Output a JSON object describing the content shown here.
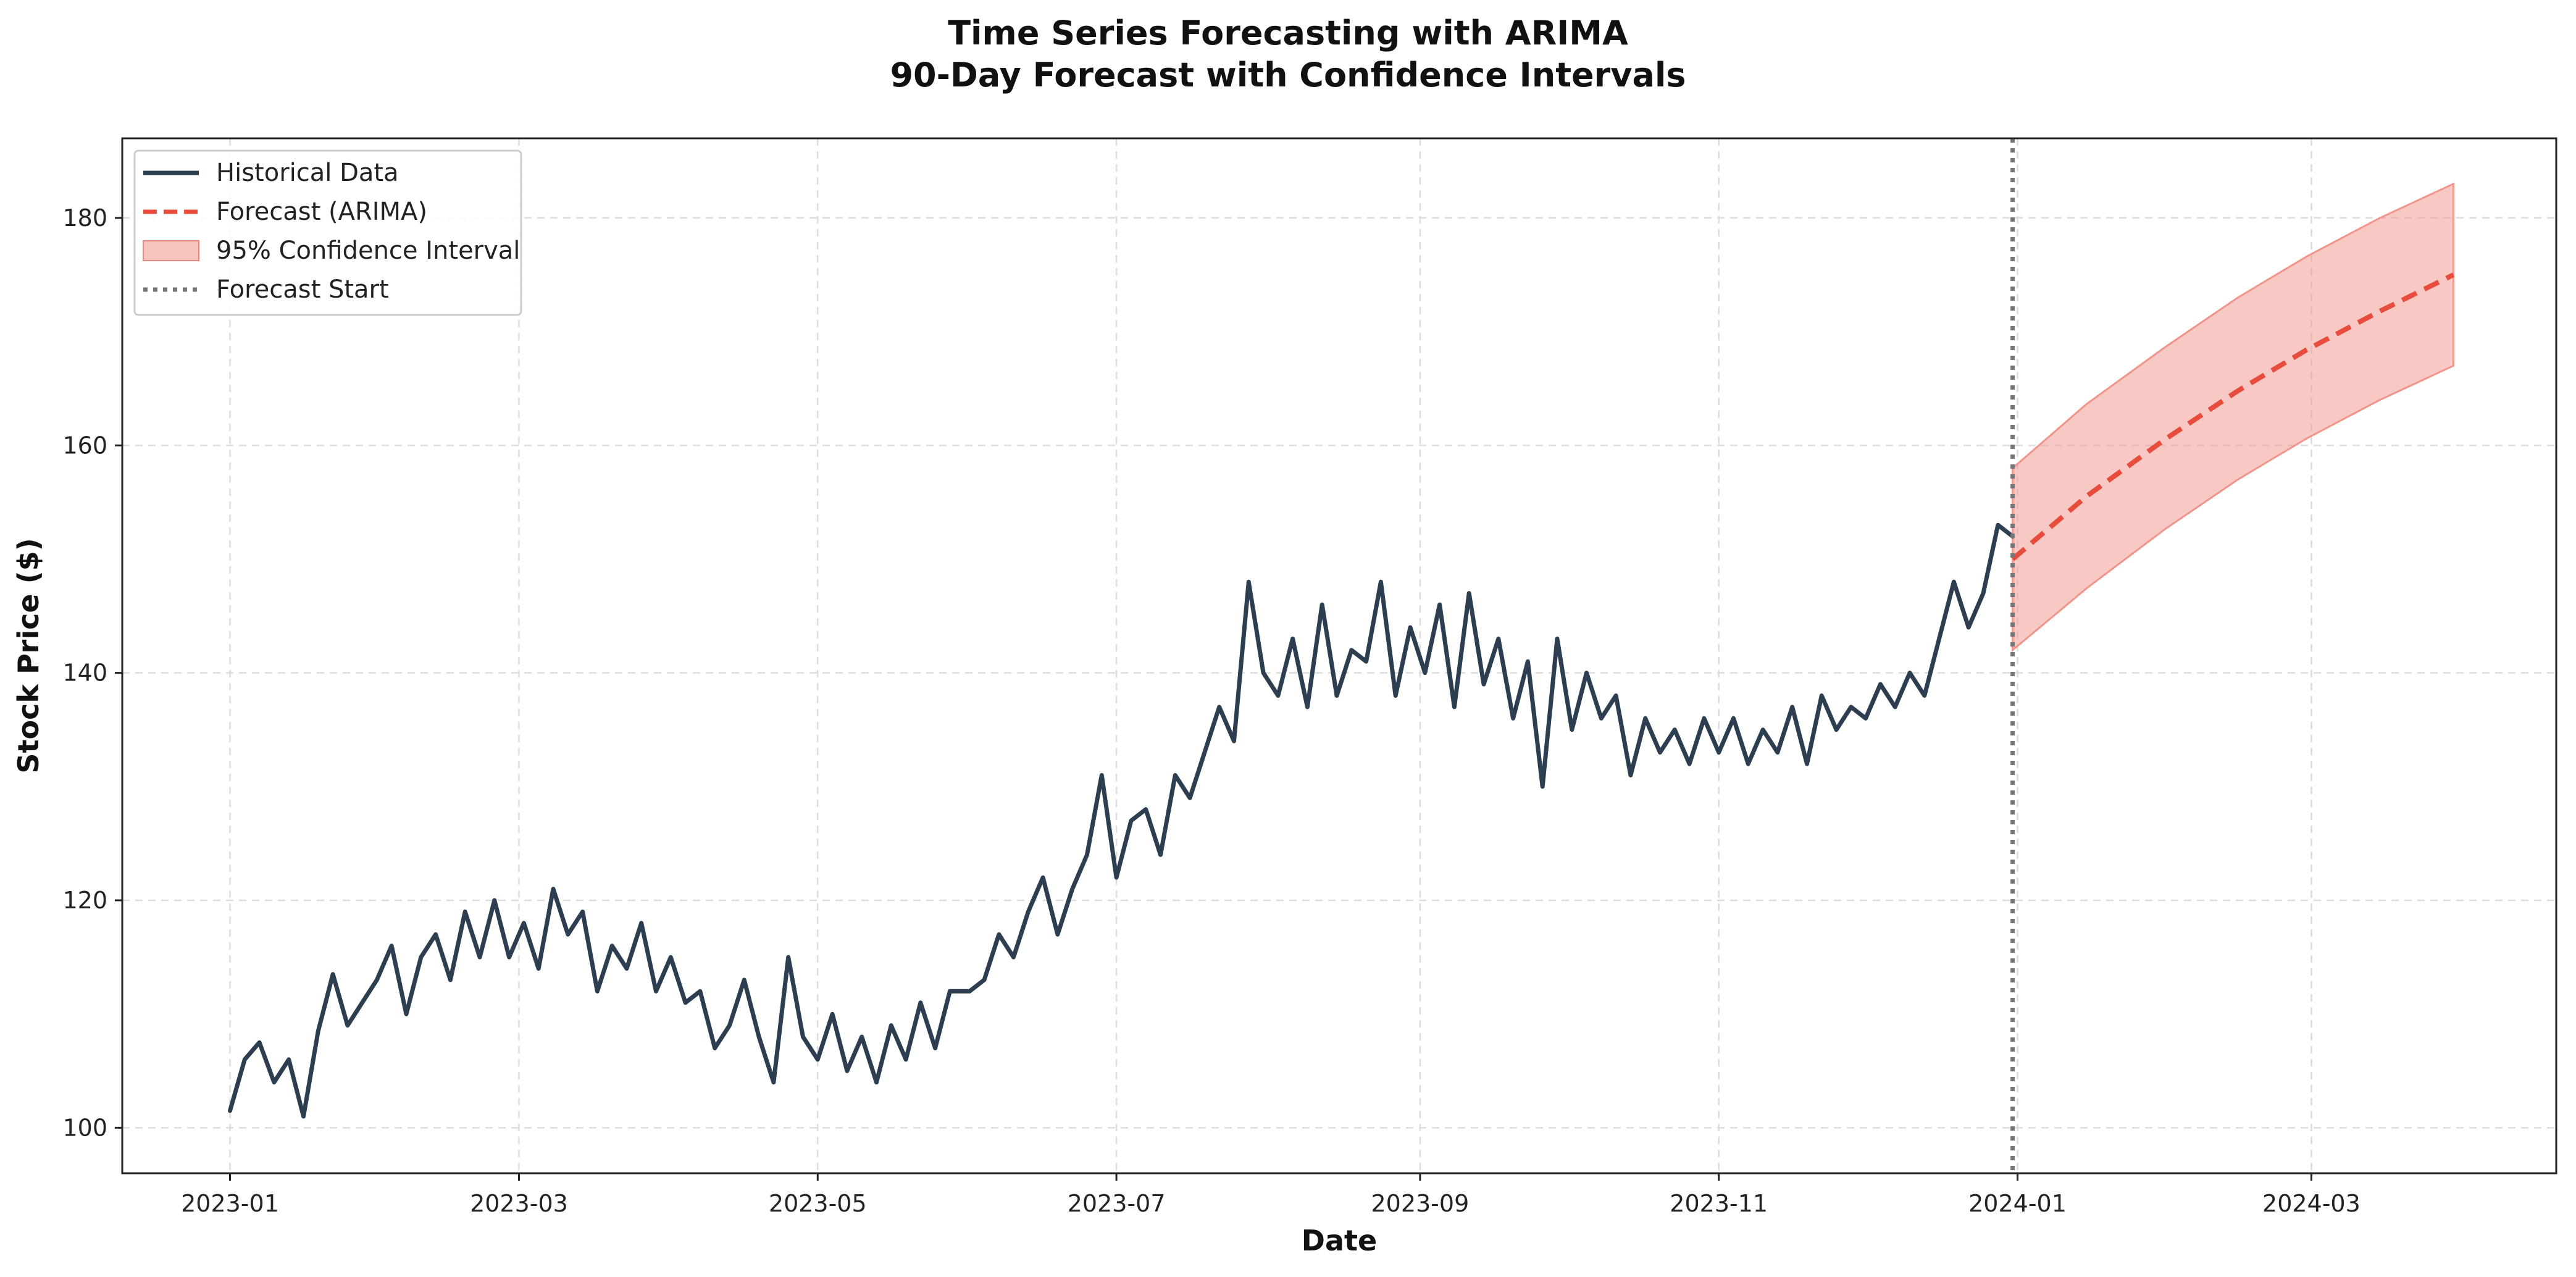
{
  "chart_data": {
    "type": "line",
    "title": "Time Series Forecasting with ARIMA",
    "subtitle": "90-Day Forecast with Confidence Intervals",
    "xlabel": "Date",
    "ylabel": "Stock Price ($)",
    "xlim": [
      "2022-12-10",
      "2024-04-20"
    ],
    "ylim": [
      96,
      187
    ],
    "x_ticks": [
      "2023-01",
      "2023-03",
      "2023-05",
      "2023-07",
      "2023-09",
      "2023-11",
      "2024-01",
      "2024-03"
    ],
    "y_ticks": [
      100,
      120,
      140,
      160,
      180
    ],
    "grid": true,
    "legend_position": "top-left",
    "colors": {
      "historical": "#2c3e50",
      "forecast": "#e74c3c",
      "ci_fill": "#f1948a",
      "forecast_start": "#777777",
      "grid": "#dddddd",
      "axes": "#222222"
    },
    "series": [
      {
        "name": "Historical Data",
        "style": "solid",
        "points": [
          [
            "2023-01-01",
            101.5
          ],
          [
            "2023-01-04",
            106.0
          ],
          [
            "2023-01-07",
            107.5
          ],
          [
            "2023-01-10",
            104.0
          ],
          [
            "2023-01-13",
            106.0
          ],
          [
            "2023-01-16",
            101.0
          ],
          [
            "2023-01-19",
            108.5
          ],
          [
            "2023-01-22",
            113.5
          ],
          [
            "2023-01-25",
            109.0
          ],
          [
            "2023-01-28",
            111.0
          ],
          [
            "2023-01-31",
            113.0
          ],
          [
            "2023-02-03",
            116.0
          ],
          [
            "2023-02-06",
            110.0
          ],
          [
            "2023-02-09",
            115.0
          ],
          [
            "2023-02-12",
            117.0
          ],
          [
            "2023-02-15",
            113.0
          ],
          [
            "2023-02-18",
            119.0
          ],
          [
            "2023-02-21",
            115.0
          ],
          [
            "2023-02-24",
            120.0
          ],
          [
            "2023-02-27",
            115.0
          ],
          [
            "2023-03-02",
            118.0
          ],
          [
            "2023-03-05",
            114.0
          ],
          [
            "2023-03-08",
            121.0
          ],
          [
            "2023-03-11",
            117.0
          ],
          [
            "2023-03-14",
            119.0
          ],
          [
            "2023-03-17",
            112.0
          ],
          [
            "2023-03-20",
            116.0
          ],
          [
            "2023-03-23",
            114.0
          ],
          [
            "2023-03-26",
            118.0
          ],
          [
            "2023-03-29",
            112.0
          ],
          [
            "2023-04-01",
            115.0
          ],
          [
            "2023-04-04",
            111.0
          ],
          [
            "2023-04-07",
            112.0
          ],
          [
            "2023-04-10",
            107.0
          ],
          [
            "2023-04-13",
            109.0
          ],
          [
            "2023-04-16",
            113.0
          ],
          [
            "2023-04-19",
            108.0
          ],
          [
            "2023-04-22",
            104.0
          ],
          [
            "2023-04-25",
            115.0
          ],
          [
            "2023-04-28",
            108.0
          ],
          [
            "2023-05-01",
            106.0
          ],
          [
            "2023-05-04",
            110.0
          ],
          [
            "2023-05-07",
            105.0
          ],
          [
            "2023-05-10",
            108.0
          ],
          [
            "2023-05-13",
            104.0
          ],
          [
            "2023-05-16",
            109.0
          ],
          [
            "2023-05-19",
            106.0
          ],
          [
            "2023-05-22",
            111.0
          ],
          [
            "2023-05-25",
            107.0
          ],
          [
            "2023-05-28",
            112.0
          ],
          [
            "2023-06-01",
            112.0
          ],
          [
            "2023-06-04",
            113.0
          ],
          [
            "2023-06-07",
            117.0
          ],
          [
            "2023-06-10",
            115.0
          ],
          [
            "2023-06-13",
            119.0
          ],
          [
            "2023-06-16",
            122.0
          ],
          [
            "2023-06-19",
            117.0
          ],
          [
            "2023-06-22",
            121.0
          ],
          [
            "2023-06-25",
            124.0
          ],
          [
            "2023-06-28",
            131.0
          ],
          [
            "2023-07-01",
            122.0
          ],
          [
            "2023-07-04",
            127.0
          ],
          [
            "2023-07-07",
            128.0
          ],
          [
            "2023-07-10",
            124.0
          ],
          [
            "2023-07-13",
            131.0
          ],
          [
            "2023-07-16",
            129.0
          ],
          [
            "2023-07-19",
            133.0
          ],
          [
            "2023-07-22",
            137.0
          ],
          [
            "2023-07-25",
            134.0
          ],
          [
            "2023-07-28",
            148.0
          ],
          [
            "2023-07-31",
            140.0
          ],
          [
            "2023-08-03",
            138.0
          ],
          [
            "2023-08-06",
            143.0
          ],
          [
            "2023-08-09",
            137.0
          ],
          [
            "2023-08-12",
            146.0
          ],
          [
            "2023-08-15",
            138.0
          ],
          [
            "2023-08-18",
            142.0
          ],
          [
            "2023-08-21",
            141.0
          ],
          [
            "2023-08-24",
            148.0
          ],
          [
            "2023-08-27",
            138.0
          ],
          [
            "2023-08-30",
            144.0
          ],
          [
            "2023-09-02",
            140.0
          ],
          [
            "2023-09-05",
            146.0
          ],
          [
            "2023-09-08",
            137.0
          ],
          [
            "2023-09-11",
            147.0
          ],
          [
            "2023-09-14",
            139.0
          ],
          [
            "2023-09-17",
            143.0
          ],
          [
            "2023-09-20",
            136.0
          ],
          [
            "2023-09-23",
            141.0
          ],
          [
            "2023-09-26",
            130.0
          ],
          [
            "2023-09-29",
            143.0
          ],
          [
            "2023-10-02",
            135.0
          ],
          [
            "2023-10-05",
            140.0
          ],
          [
            "2023-10-08",
            136.0
          ],
          [
            "2023-10-11",
            138.0
          ],
          [
            "2023-10-14",
            131.0
          ],
          [
            "2023-10-17",
            136.0
          ],
          [
            "2023-10-20",
            133.0
          ],
          [
            "2023-10-23",
            135.0
          ],
          [
            "2023-10-26",
            132.0
          ],
          [
            "2023-10-29",
            136.0
          ],
          [
            "2023-11-01",
            133.0
          ],
          [
            "2023-11-04",
            136.0
          ],
          [
            "2023-11-07",
            132.0
          ],
          [
            "2023-11-10",
            135.0
          ],
          [
            "2023-11-13",
            133.0
          ],
          [
            "2023-11-16",
            137.0
          ],
          [
            "2023-11-19",
            132.0
          ],
          [
            "2023-11-22",
            138.0
          ],
          [
            "2023-11-25",
            135.0
          ],
          [
            "2023-11-28",
            137.0
          ],
          [
            "2023-12-01",
            136.0
          ],
          [
            "2023-12-04",
            139.0
          ],
          [
            "2023-12-07",
            137.0
          ],
          [
            "2023-12-10",
            140.0
          ],
          [
            "2023-12-13",
            138.0
          ],
          [
            "2023-12-16",
            143.0
          ],
          [
            "2023-12-19",
            148.0
          ],
          [
            "2023-12-22",
            144.0
          ],
          [
            "2023-12-25",
            147.0
          ],
          [
            "2023-12-28",
            153.0
          ],
          [
            "2023-12-31",
            152.0
          ]
        ]
      },
      {
        "name": "Forecast (ARIMA)",
        "style": "dashed",
        "points": [
          [
            "2023-12-31",
            150.0
          ],
          [
            "2024-01-15",
            155.5
          ],
          [
            "2024-01-31",
            160.5
          ],
          [
            "2024-02-15",
            164.8
          ],
          [
            "2024-02-29",
            168.4
          ],
          [
            "2024-03-15",
            171.8
          ],
          [
            "2024-03-30",
            175.0
          ]
        ]
      }
    ],
    "confidence_interval": {
      "name": "95% Confidence Interval",
      "lower": [
        [
          "2023-12-31",
          142.0
        ],
        [
          "2024-01-15",
          147.4
        ],
        [
          "2024-01-31",
          152.6
        ],
        [
          "2024-02-15",
          157.0
        ],
        [
          "2024-02-29",
          160.6
        ],
        [
          "2024-03-15",
          164.0
        ],
        [
          "2024-03-30",
          167.0
        ]
      ],
      "upper": [
        [
          "2023-12-31",
          158.0
        ],
        [
          "2024-01-15",
          163.6
        ],
        [
          "2024-01-31",
          168.6
        ],
        [
          "2024-02-15",
          173.0
        ],
        [
          "2024-02-29",
          176.6
        ],
        [
          "2024-03-15",
          180.0
        ],
        [
          "2024-03-30",
          183.0
        ]
      ]
    },
    "forecast_start": {
      "name": "Forecast Start",
      "date": "2023-12-31"
    },
    "legend": [
      "Historical Data",
      "Forecast (ARIMA)",
      "95% Confidence Interval",
      "Forecast Start"
    ]
  }
}
